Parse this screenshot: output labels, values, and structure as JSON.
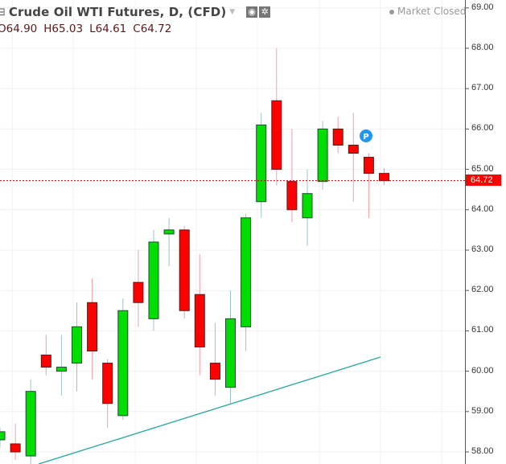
{
  "header": {
    "title": "Crude Oil WTI Futures, D, (CFD)",
    "collapse_icon": "minus-square-icon",
    "caret_icon": "caret-down-icon",
    "buttons": [
      {
        "name": "visibility-icon",
        "glyph": "◉"
      },
      {
        "name": "gear-icon",
        "glyph": "✲"
      }
    ],
    "ohlc": {
      "open": "O64.90",
      "high": "H65.03",
      "low": "L64.61",
      "close": "C64.72"
    },
    "status": "Market Closed"
  },
  "price_tag": {
    "value": "64.72",
    "color": "#ff0000"
  },
  "marker": {
    "label": "P",
    "color": "#2196f3"
  },
  "colors": {
    "up": "#00dd00",
    "down": "#ff0000",
    "border": "#1f4a2f",
    "up_wick": "#9cc3c8",
    "down_wick": "#eea0a8",
    "trendline": "#26a69a",
    "grid": "#f0f0f0",
    "axis": "#555555"
  },
  "chart_data": {
    "type": "candlestick",
    "title": "Crude Oil WTI Futures, D, (CFD)",
    "xlabel": "",
    "ylabel": "",
    "ylim": [
      57.7,
      69.2
    ],
    "y_ticks": [
      "69.00",
      "68.00",
      "67.00",
      "66.00",
      "65.00",
      "64.00",
      "63.00",
      "62.00",
      "61.00",
      "60.00",
      "59.00",
      "58.00"
    ],
    "grid": true,
    "last_price": 64.72,
    "candles": [
      {
        "o": 58.3,
        "h": 58.6,
        "l": 58.1,
        "c": 58.5
      },
      {
        "o": 58.2,
        "h": 58.7,
        "l": 57.8,
        "c": 58.0
      },
      {
        "o": 57.9,
        "h": 59.8,
        "l": 57.7,
        "c": 59.5
      },
      {
        "o": 60.4,
        "h": 60.9,
        "l": 59.9,
        "c": 60.1
      },
      {
        "o": 60.0,
        "h": 60.9,
        "l": 59.4,
        "c": 60.1
      },
      {
        "o": 60.2,
        "h": 61.7,
        "l": 59.5,
        "c": 61.1
      },
      {
        "o": 61.7,
        "h": 62.3,
        "l": 59.8,
        "c": 60.5
      },
      {
        "o": 60.2,
        "h": 60.3,
        "l": 58.6,
        "c": 59.2
      },
      {
        "o": 58.9,
        "h": 61.8,
        "l": 58.8,
        "c": 61.5
      },
      {
        "o": 62.2,
        "h": 63.0,
        "l": 61.1,
        "c": 61.7
      },
      {
        "o": 61.3,
        "h": 63.5,
        "l": 61.0,
        "c": 63.2
      },
      {
        "o": 63.4,
        "h": 63.8,
        "l": 62.6,
        "c": 63.5
      },
      {
        "o": 63.5,
        "h": 63.6,
        "l": 61.3,
        "c": 61.5
      },
      {
        "o": 61.9,
        "h": 62.9,
        "l": 59.9,
        "c": 60.6
      },
      {
        "o": 60.2,
        "h": 61.2,
        "l": 59.4,
        "c": 59.8
      },
      {
        "o": 59.6,
        "h": 62.0,
        "l": 59.2,
        "c": 61.3
      },
      {
        "o": 61.1,
        "h": 63.9,
        "l": 60.5,
        "c": 63.8
      },
      {
        "o": 64.2,
        "h": 66.4,
        "l": 63.8,
        "c": 66.1
      },
      {
        "o": 66.7,
        "h": 68.0,
        "l": 64.6,
        "c": 65.0
      },
      {
        "o": 64.7,
        "h": 66.0,
        "l": 63.7,
        "c": 64.0
      },
      {
        "o": 63.8,
        "h": 65.0,
        "l": 63.1,
        "c": 64.4
      },
      {
        "o": 64.7,
        "h": 66.2,
        "l": 64.5,
        "c": 66.0
      },
      {
        "o": 66.0,
        "h": 66.3,
        "l": 65.4,
        "c": 65.6
      },
      {
        "o": 65.6,
        "h": 66.4,
        "l": 64.2,
        "c": 65.4
      },
      {
        "o": 65.3,
        "h": 65.4,
        "l": 63.8,
        "c": 64.9
      },
      {
        "o": 64.9,
        "h": 65.03,
        "l": 64.61,
        "c": 64.72
      }
    ],
    "trendline": {
      "from_price": 57.7,
      "to_price": 60.3,
      "color": "#26a69a"
    },
    "annotations": [
      "P marker",
      "Market Closed"
    ]
  }
}
